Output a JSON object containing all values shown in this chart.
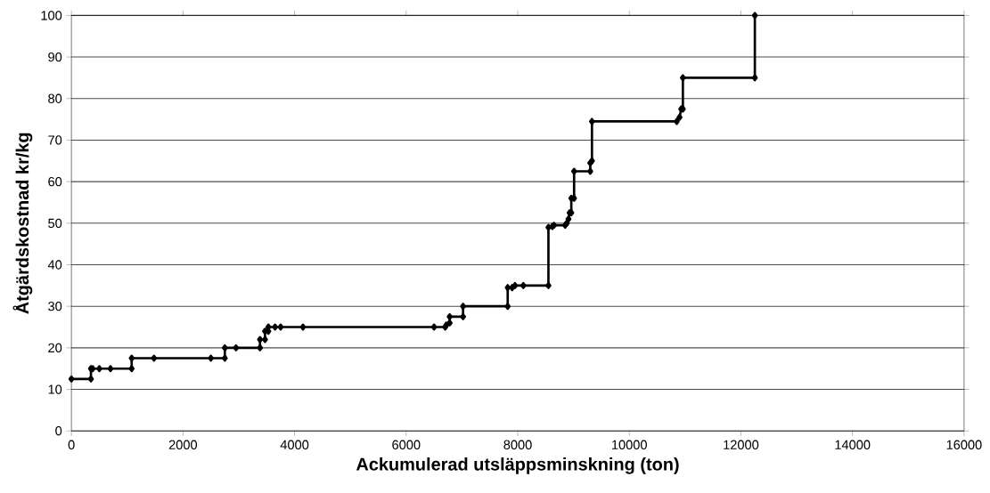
{
  "chart_data": {
    "type": "line",
    "xlabel": "Ackumulerad utsläppsminskning (ton)",
    "ylabel": "Åtgärdskostnad kr/kg",
    "x": [
      0,
      350,
      350,
      380,
      500,
      700,
      1080,
      1080,
      1480,
      2500,
      2750,
      2750,
      2950,
      3380,
      3380,
      3470,
      3470,
      3530,
      3530,
      3650,
      3750,
      4150,
      6500,
      6700,
      6720,
      6780,
      6780,
      7020,
      7020,
      7820,
      7820,
      7900,
      7950,
      8100,
      8550,
      8550,
      8620,
      8650,
      8850,
      8880,
      8910,
      8930,
      8960,
      8960,
      9010,
      9010,
      9300,
      9300,
      9330,
      9330,
      10850,
      10900,
      10930,
      10960,
      10960,
      12250,
      12250
    ],
    "series": [
      {
        "color": "#000000",
        "values": [
          12.5,
          12.5,
          15,
          15,
          15,
          15,
          15,
          17.5,
          17.5,
          17.5,
          17.5,
          20,
          20,
          20,
          22,
          22,
          24,
          24,
          25,
          25,
          25,
          25,
          25,
          25,
          25.5,
          26,
          27.5,
          27.5,
          30,
          30,
          34.5,
          34.5,
          35,
          35,
          35,
          49,
          49.2,
          49.5,
          49.5,
          50,
          51,
          52.5,
          52.5,
          56,
          56,
          62.5,
          62.5,
          64.5,
          65,
          74.5,
          74.5,
          75.5,
          77.5,
          77.5,
          85,
          85,
          100
        ]
      }
    ],
    "xlim": [
      0,
      16000
    ],
    "xticks": [
      0,
      2000,
      4000,
      6000,
      8000,
      10000,
      12000,
      14000,
      16000
    ],
    "ylim": [
      0,
      100
    ],
    "yticks": [
      0,
      10,
      20,
      30,
      40,
      50,
      60,
      70,
      80,
      90,
      100
    ],
    "grid": "y",
    "marker": "diamond",
    "line_style": "solid"
  }
}
